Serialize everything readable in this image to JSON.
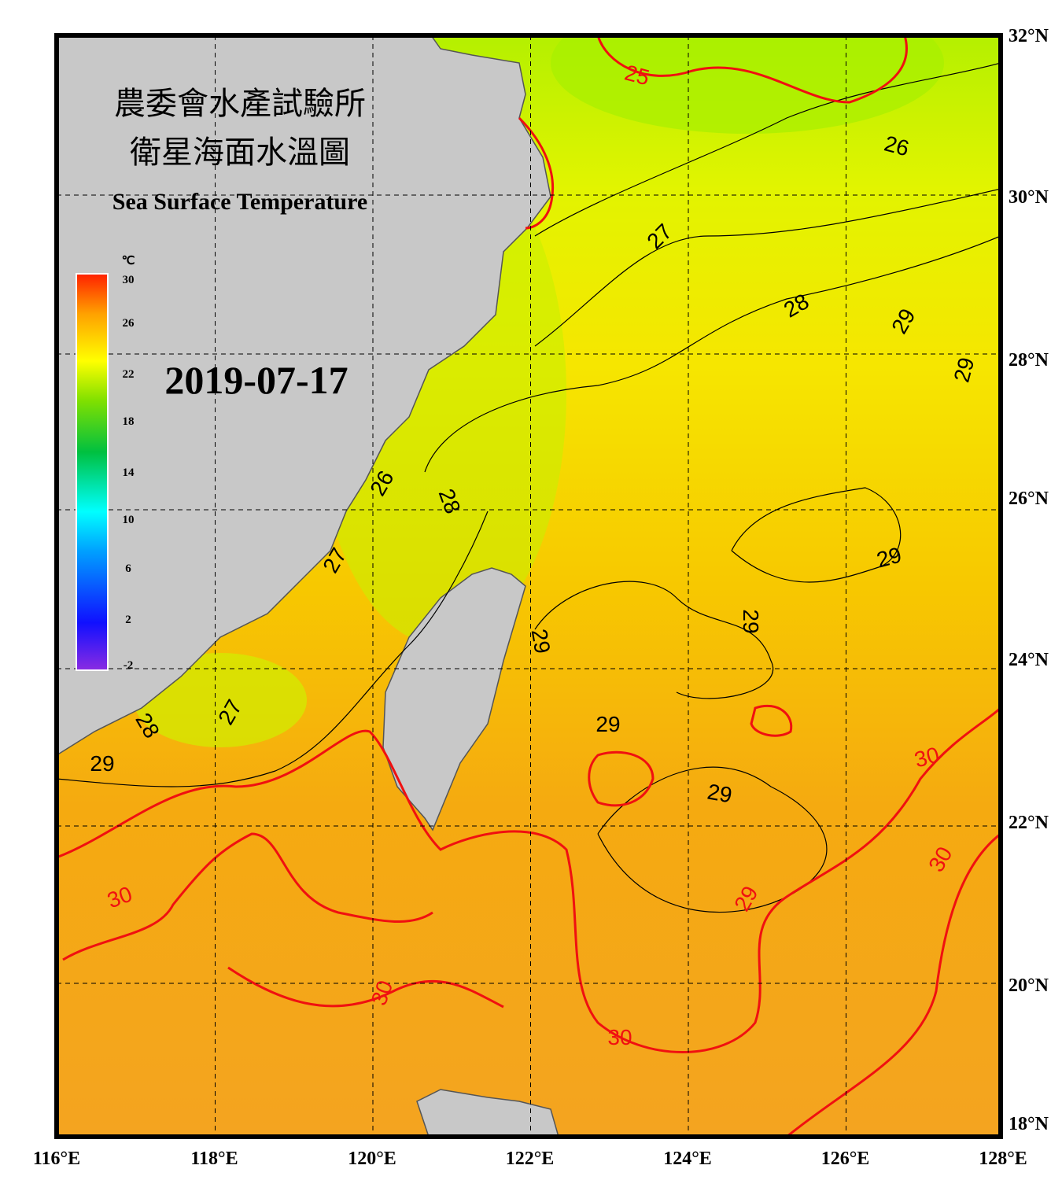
{
  "header": {
    "title_zh": "農委會水產試驗所",
    "subtitle_zh": "衛星海面水溫圖",
    "title_en": "Sea Surface Temperature"
  },
  "date": "2019-07-17",
  "colorbar": {
    "unit": "℃",
    "labels": [
      "30",
      "26",
      "22",
      "18",
      "14",
      "10",
      "6",
      "2",
      "-2"
    ]
  },
  "axes": {
    "lat": [
      "32°N",
      "30°N",
      "28°N",
      "26°N",
      "24°N",
      "22°N",
      "20°N",
      "18°N"
    ],
    "lon": [
      "116°E",
      "118°E",
      "120°E",
      "122°E",
      "124°E",
      "126°E",
      "128°E"
    ]
  },
  "contour_labels": [
    "25",
    "26",
    "27",
    "28",
    "29",
    "29",
    "26",
    "28",
    "29",
    "27",
    "29",
    "29",
    "27",
    "28",
    "29",
    "29",
    "29",
    "30",
    "30",
    "30",
    "29",
    "30",
    "30"
  ]
}
